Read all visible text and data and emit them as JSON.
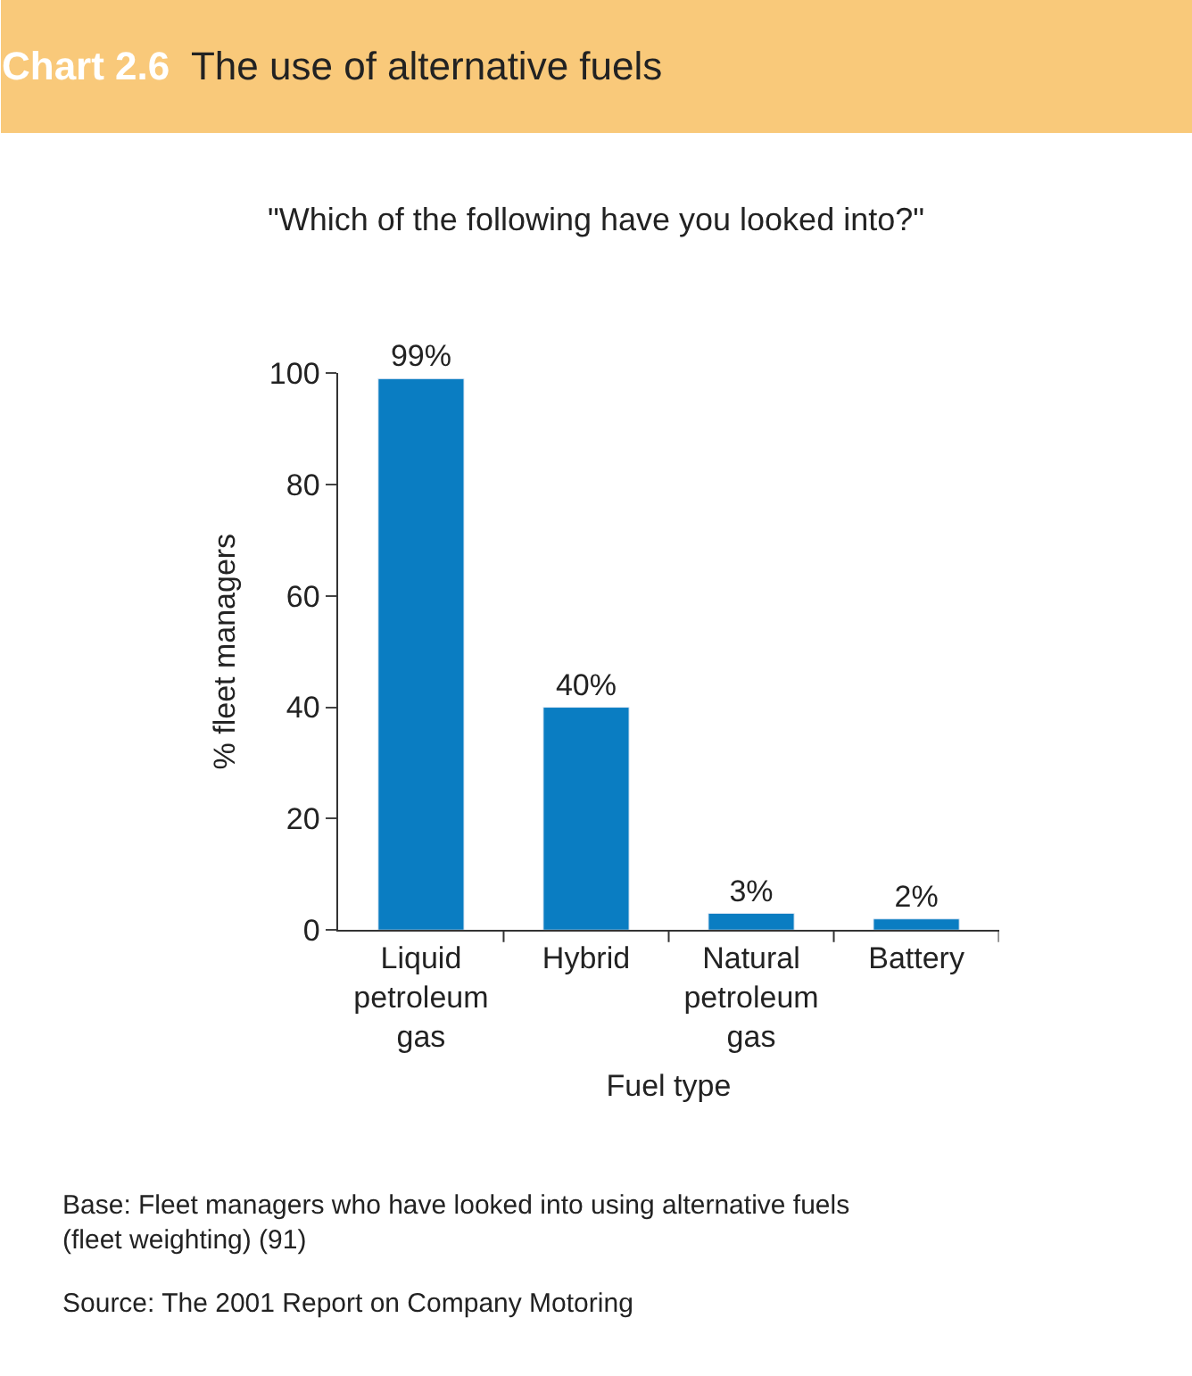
{
  "chart_data": {
    "type": "bar",
    "title": "Chart 2.6 The use of alternative fuels",
    "subtitle": "\"Which of the following have you looked into?\"",
    "xlabel": "Fuel type",
    "ylabel": "% fleet managers",
    "categories": [
      "Liquid petroleum gas",
      "Hybrid",
      "Natural petroleum gas",
      "Battery"
    ],
    "values": [
      99,
      40,
      3,
      2
    ],
    "value_labels": [
      "99%",
      "40%",
      "3%",
      "2%"
    ],
    "color": "#0a7dc2",
    "ylim": [
      0,
      100
    ],
    "yticks": [
      0,
      20,
      40,
      60,
      80,
      100
    ],
    "annotations": [
      "Base: Fleet managers who have looked into using alternative fuels\n(fleet weighting) (91)",
      "Source: The 2001 Report on Company Motoring"
    ]
  }
}
